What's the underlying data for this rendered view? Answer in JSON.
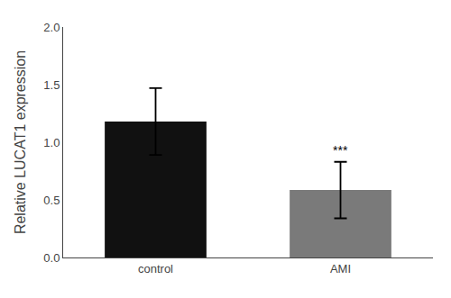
{
  "chart_data": {
    "type": "bar",
    "categories": [
      "control",
      "AMI"
    ],
    "values": [
      1.18,
      0.585
    ],
    "errors_upper": [
      0.29,
      0.245
    ],
    "errors_lower": [
      0.29,
      0.245
    ],
    "colors": [
      "#111111",
      "#7a7a7a"
    ],
    "ylabel": "Relative LUCAT1 expression",
    "ylim": [
      0,
      2.0
    ],
    "yticks": [
      {
        "value": 0.0,
        "label": "0.0"
      },
      {
        "value": 0.5,
        "label": "0.5"
      },
      {
        "value": 1.0,
        "label": "1.0"
      },
      {
        "value": 1.5,
        "label": "1.5"
      },
      {
        "value": 2.0,
        "label": "2.0"
      }
    ],
    "annotations": [
      {
        "category": "AMI",
        "text": "***"
      }
    ],
    "grid": false
  }
}
